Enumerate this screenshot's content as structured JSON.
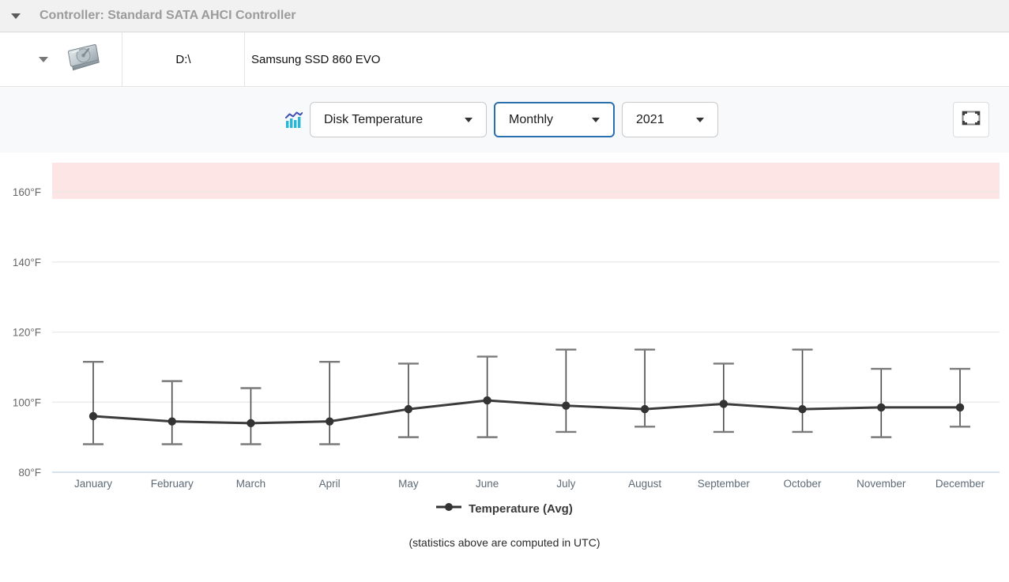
{
  "header": {
    "title": "Controller: Standard SATA AHCI Controller"
  },
  "disk": {
    "drive_letter": "D:\\",
    "model": "Samsung SSD 860 EVO"
  },
  "toolbar": {
    "metric_selected": "Disk Temperature",
    "period_selected": "Monthly",
    "year_selected": "2021"
  },
  "chart_data": {
    "type": "line",
    "categories": [
      "January",
      "February",
      "March",
      "April",
      "May",
      "June",
      "July",
      "August",
      "September",
      "October",
      "November",
      "December"
    ],
    "series": [
      {
        "name": "Temperature (Avg)",
        "values": [
          96,
          94.5,
          94,
          94.5,
          98,
          100.5,
          99,
          98,
          99.5,
          98,
          98.5,
          98.5
        ],
        "error_max": [
          111.5,
          106,
          104,
          111.5,
          111,
          113,
          115,
          115,
          111,
          115,
          109.5,
          109.5
        ],
        "error_min": [
          88,
          88,
          88,
          88,
          90,
          90,
          91.5,
          93,
          91.5,
          91.5,
          90,
          93
        ]
      }
    ],
    "title": "",
    "xlabel": "",
    "ylabel": "",
    "yticks": [
      80,
      100,
      120,
      140,
      160
    ],
    "ytick_unit": "°F",
    "ylim": [
      80,
      168.5
    ],
    "danger_band": {
      "from": 158,
      "to": 168.5,
      "color": "#fde5e5"
    },
    "grid": true,
    "legend_position": "bottom"
  },
  "legend": {
    "avg_label": "Temperature (Avg)"
  },
  "footer": {
    "note": "(statistics above are computed in UTC)"
  },
  "colors": {
    "accent_blue": "#2a6fad",
    "series_line": "#3b3b3b",
    "error_bar": "#4a4a4a",
    "error_cap": "#7a7a7a",
    "gridline": "#e8e8e8",
    "baseline": "#c9d9e8",
    "band": "#fde5e5",
    "tick_text": "#666666",
    "month_text": "#5d6a76",
    "icon_teal": "#26b8d8",
    "icon_indigo": "#3f51b5"
  }
}
